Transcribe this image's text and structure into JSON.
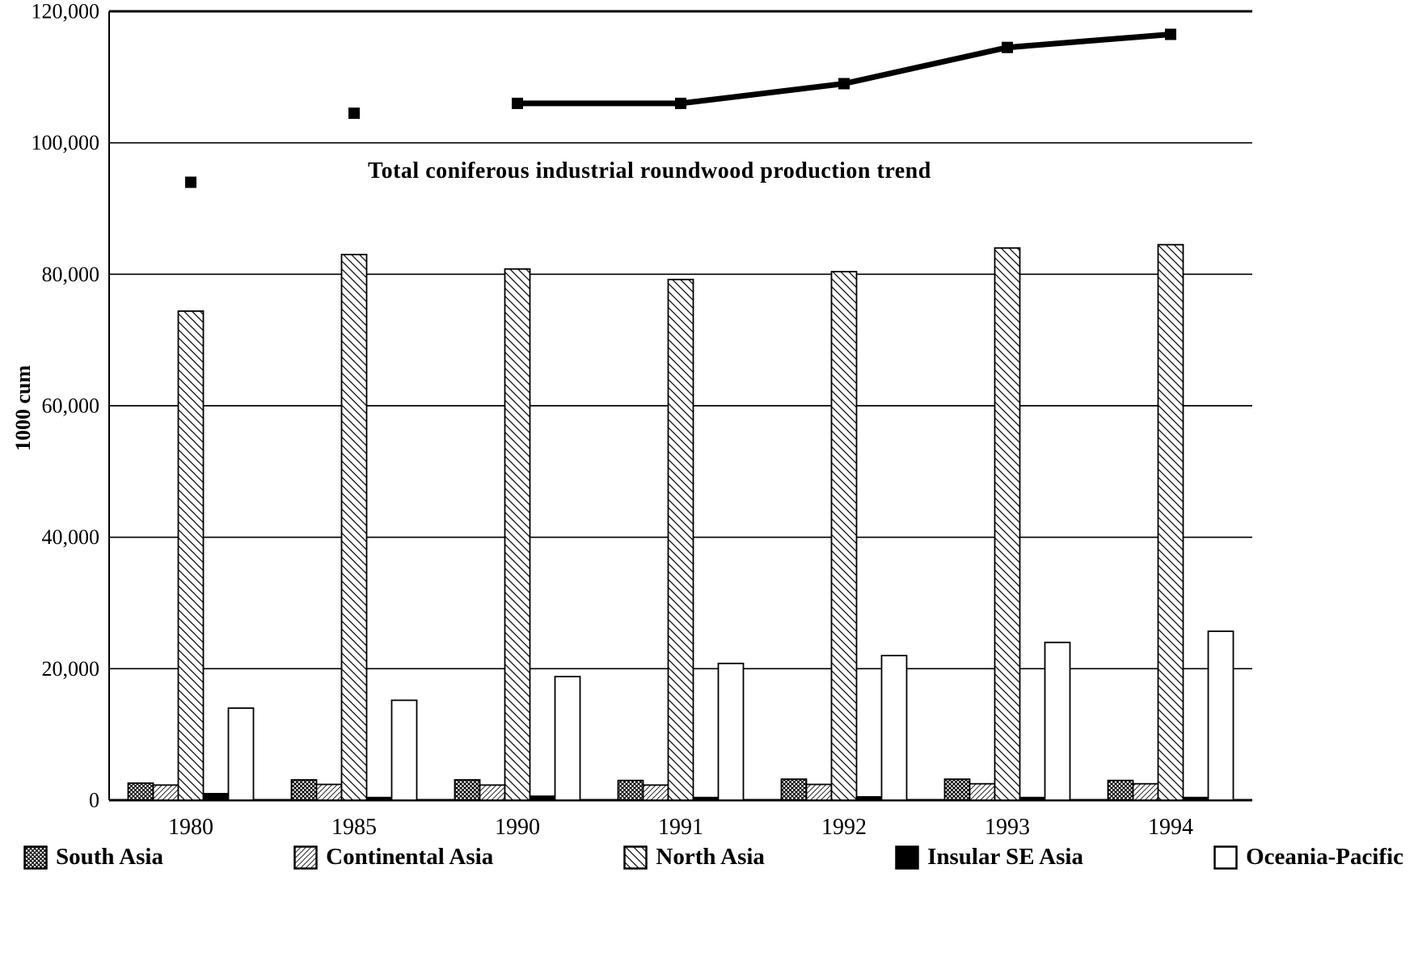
{
  "page": {
    "background": "#ffffff",
    "ink": "#000000"
  },
  "chart_data": {
    "type": "bar",
    "title": "Total coniferous industrial roundwood production trend",
    "xlabel": "",
    "ylabel": "1000 cum",
    "ylim": [
      0,
      120000
    ],
    "ytick_interval": 20000,
    "ytick_labels": [
      "0",
      "20,000",
      "40,000",
      "60,000",
      "80,000",
      "100,000",
      "120,000"
    ],
    "categories": [
      "1980",
      "1985",
      "1990",
      "1991",
      "1992",
      "1993",
      "1994"
    ],
    "grid": true,
    "legend_position": "bottom",
    "legend": [
      "South Asia",
      "Continental Asia",
      "North Asia",
      "Insular SE Asia",
      "Oceania-Pacific"
    ],
    "series": [
      {
        "name": "South Asia",
        "type": "bar",
        "pattern": "crosshatch",
        "values": [
          2600,
          3100,
          3100,
          3000,
          3200,
          3200,
          3000
        ]
      },
      {
        "name": "Continental Asia",
        "type": "bar",
        "pattern": "diagonal-dense",
        "values": [
          2300,
          2400,
          2300,
          2300,
          2400,
          2500,
          2500
        ]
      },
      {
        "name": "North Asia",
        "type": "bar",
        "pattern": "diagonal",
        "values": [
          74400,
          83000,
          80800,
          79200,
          80400,
          84000,
          84500
        ]
      },
      {
        "name": "Insular SE Asia",
        "type": "bar",
        "pattern": "solid-black",
        "values": [
          1000,
          400,
          600,
          400,
          500,
          400,
          400
        ]
      },
      {
        "name": "Oceania-Pacific",
        "type": "bar",
        "pattern": "white",
        "values": [
          14000,
          15200,
          18800,
          20800,
          22000,
          24000,
          25700
        ]
      },
      {
        "name": "Total coniferous industrial roundwood production trend",
        "type": "line",
        "marker": "square",
        "connected_from_index": 2,
        "values": [
          94000,
          104500,
          106000,
          106000,
          109000,
          114500,
          116500
        ]
      }
    ]
  }
}
